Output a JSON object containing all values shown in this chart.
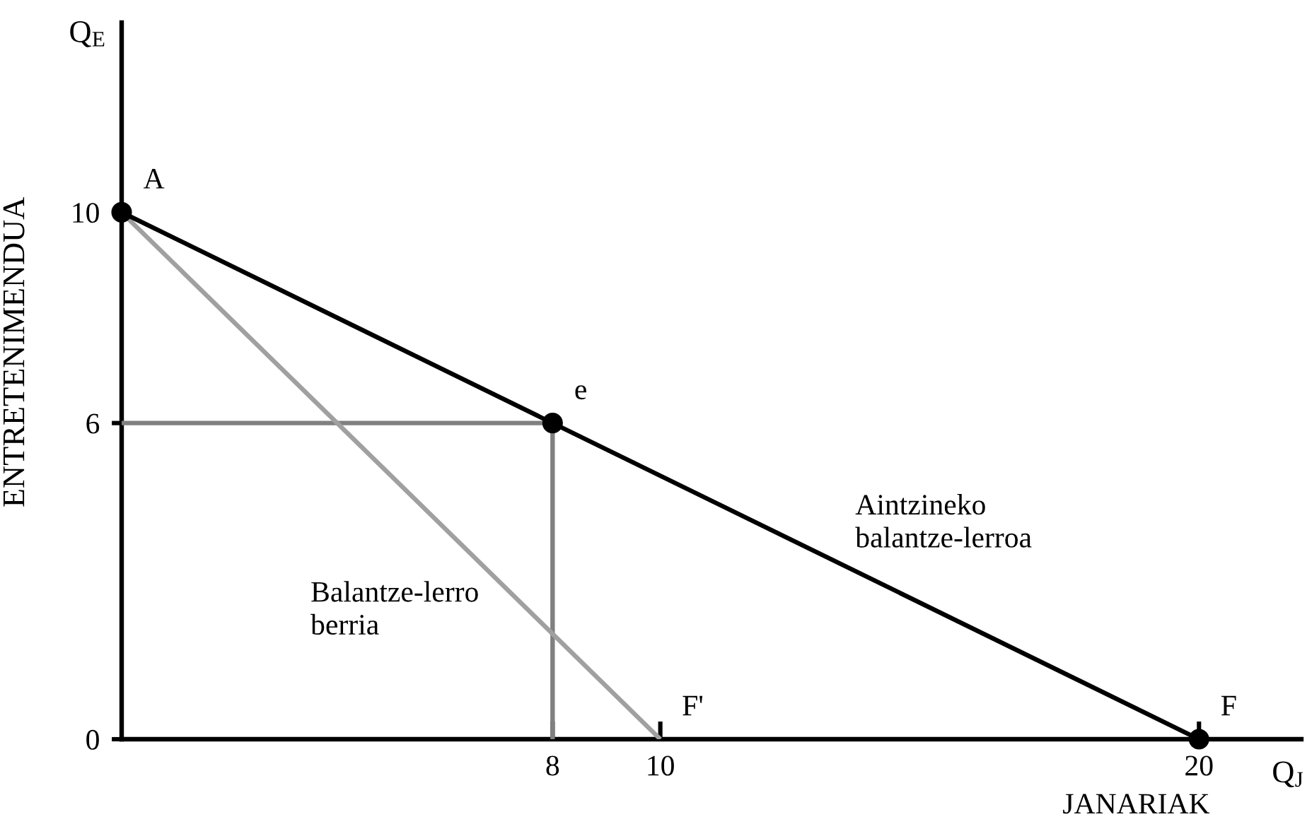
{
  "chart_data": {
    "type": "line",
    "xlabel": "JANARIAK",
    "ylabel": "ENTRETENIMENDUA",
    "xlim": [
      0,
      21.9
    ],
    "ylim": [
      0,
      13.6
    ],
    "xticks": [
      8,
      10,
      20
    ],
    "yticks": [
      0,
      6,
      10
    ],
    "grid": false,
    "legend": false,
    "annotations": [
      "Q$_{E}$",
      "Q$_{J}$",
      {
        "text": "A",
        "x": 0,
        "y": 10
      },
      {
        "text": "e",
        "x": 8,
        "y": 6
      },
      {
        "text": "F",
        "x": 20,
        "y": 0
      },
      {
        "text": "F'",
        "x": 10,
        "y": 0
      }
    ],
    "series": [
      {
        "color": "#808080",
        "x": [
          0,
          8,
          8
        ],
        "values": [
          6,
          6,
          0
        ]
      },
      {
        "name": "Balantze-lerro berria",
        "color": "#a0a0a0",
        "x": [
          0,
          10
        ],
        "values": [
          10,
          0
        ]
      },
      {
        "name": "Aintzineko balantze-lerroa",
        "color": "#000000",
        "x": [
          0,
          20
        ],
        "values": [
          10,
          0
        ]
      },
      {
        "type": "scatter",
        "color": "#000000",
        "marker": "circle",
        "x": [
          0,
          8,
          20
        ],
        "values": [
          10,
          6,
          0
        ]
      }
    ]
  }
}
